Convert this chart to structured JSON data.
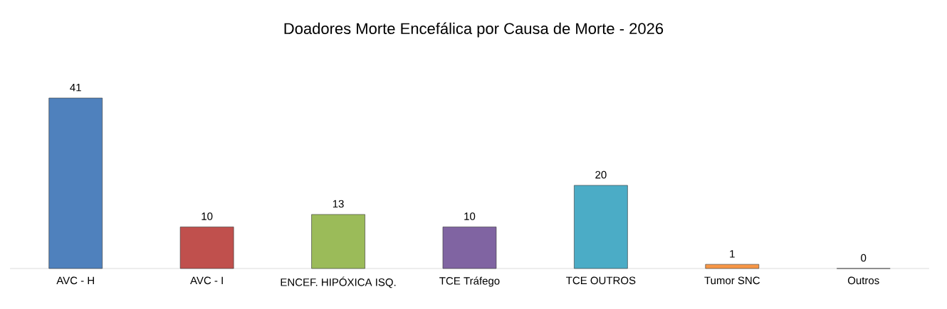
{
  "chart_data": {
    "type": "bar",
    "title": "Doadores Morte Encefálica por Causa de Morte - 2026",
    "categories": [
      "AVC - H",
      "AVC - I",
      "ENCEF. HIPÓXICA ISQ.",
      "TCE Tráfego",
      "TCE OUTROS",
      "Tumor SNC",
      "Outros"
    ],
    "values": [
      41,
      10,
      13,
      10,
      20,
      1,
      0
    ],
    "colors": [
      "#4f81bd",
      "#c0504d",
      "#9bbb59",
      "#8064a2",
      "#4bacc6",
      "#f79646",
      "#4f81bd"
    ],
    "data_labels": true
  }
}
